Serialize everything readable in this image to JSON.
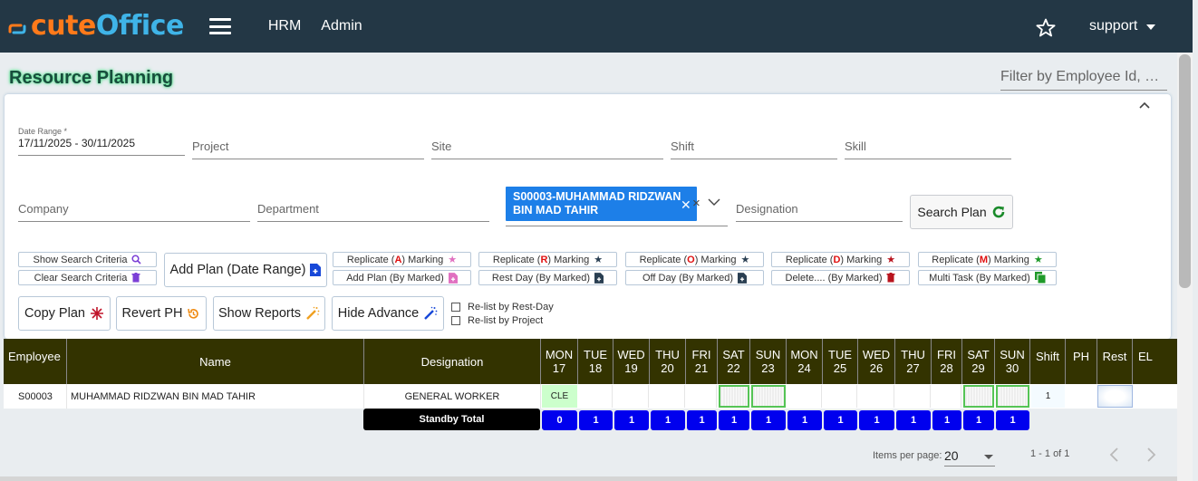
{
  "app": {
    "logo_part1": "cute",
    "logo_part2": "Office",
    "nav": [
      "HRM",
      "Admin"
    ],
    "user": "support",
    "colors": {
      "topbar": "#233745",
      "logo_orange": "#ff7a1a",
      "logo_blue": "#3fb4e8",
      "table_header": "#333300",
      "chip": "#1d7fe8",
      "total_cell": "#0000ee"
    }
  },
  "page": {
    "title": "Resource Planning",
    "filter_placeholder": "Filter by Employee Id, N..."
  },
  "search": {
    "date_range_label": "Date Range *",
    "date_range_value": "17/11/2025 - 30/11/2025",
    "project": "Project",
    "site": "Site",
    "shift": "Shift",
    "skill": "Skill",
    "company": "Company",
    "department": "Department",
    "employee_chip": "S00003-MUHAMMAD RIDZWAN BIN MAD TAHIR",
    "designation": "Designation",
    "search_button": "Search Plan"
  },
  "actions": {
    "show_search_criteria": "Show Search Criteria",
    "clear_search_criteria": "Clear Search Criteria",
    "add_plan_range": "Add Plan (Date Range)",
    "replicate_a_pre": "Replicate (",
    "replicate_a_key": "A",
    "replicate_a_post": ") Marking",
    "replicate_r_pre": "Replicate (",
    "replicate_r_key": "R",
    "replicate_r_post": ") Marking",
    "replicate_o_pre": "Replicate (",
    "replicate_o_key": "O",
    "replicate_o_post": ") Marking",
    "replicate_d_pre": "Replicate (",
    "replicate_d_key": "D",
    "replicate_d_post": ") Marking",
    "replicate_m_pre": "Replicate (",
    "replicate_m_key": "M",
    "replicate_m_post": ") Marking",
    "add_plan_marked": "Add Plan (By Marked)",
    "rest_day_marked": "Rest Day (By Marked)",
    "off_day_marked": "Off Day (By Marked)",
    "delete_marked": "Delete.... (By Marked)",
    "multi_task_marked": "Multi Task (By Marked)",
    "copy_plan": "Copy Plan",
    "revert_ph": "Revert PH",
    "show_reports": "Show Reports",
    "hide_advance": "Hide Advance",
    "relist_rest": "Re-list by Rest-Day",
    "relist_project": "Re-list by Project"
  },
  "table": {
    "col_employee": "Employee",
    "col_name": "Name",
    "col_designation": "Designation",
    "days": [
      {
        "d": "MON",
        "n": "17"
      },
      {
        "d": "TUE",
        "n": "18"
      },
      {
        "d": "WED",
        "n": "19"
      },
      {
        "d": "THU",
        "n": "20"
      },
      {
        "d": "FRI",
        "n": "21"
      },
      {
        "d": "SAT",
        "n": "22"
      },
      {
        "d": "SUN",
        "n": "23"
      },
      {
        "d": "MON",
        "n": "24"
      },
      {
        "d": "TUE",
        "n": "25"
      },
      {
        "d": "WED",
        "n": "26"
      },
      {
        "d": "THU",
        "n": "27"
      },
      {
        "d": "FRI",
        "n": "28"
      },
      {
        "d": "SAT",
        "n": "29"
      },
      {
        "d": "SUN",
        "n": "30"
      }
    ],
    "col_shift": "Shift",
    "col_ph": "PH",
    "col_rest": "Rest",
    "col_el": "EL",
    "row": {
      "employee": "S00003",
      "name": "MUHAMMAD RIDZWAN BIN MAD TAHIR",
      "designation": "GENERAL WORKER",
      "day1": "CLE",
      "shift": "1"
    },
    "standby_label": "Standby Total",
    "standby_values": [
      "0",
      "1",
      "1",
      "1",
      "1",
      "1",
      "1",
      "1",
      "1",
      "1",
      "1",
      "1",
      "1",
      "1"
    ]
  },
  "paginator": {
    "items_per_page_label": "Items per page:",
    "page_size": "20",
    "range": "1 - 1 of 1"
  }
}
